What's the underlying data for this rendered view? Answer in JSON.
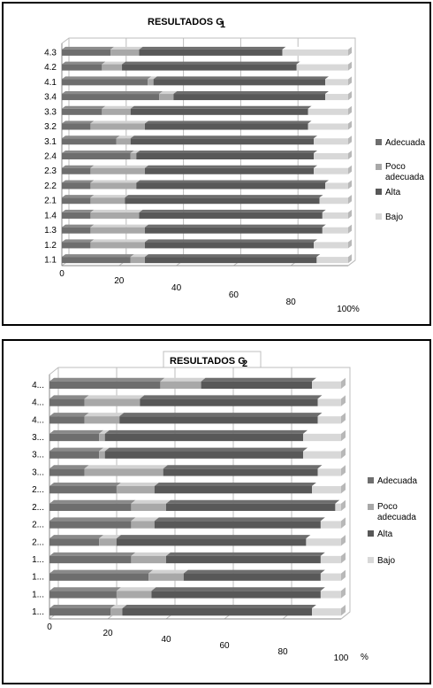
{
  "colors": {
    "Adecuada": "#6e6e6e",
    "Poco adecuada": "#a8a8a8",
    "Alta": "#585858",
    "Bajo": "#d8d8d8",
    "frame": "#bdbdbd"
  },
  "chart_data": [
    {
      "type": "bar",
      "orientation": "horizontal-stacked-percent",
      "title": "RESULTADOS G",
      "title_sub": "1",
      "categories": [
        "4.3",
        "4.2",
        "4.1",
        "3.4",
        "3.3",
        "3.2",
        "3.1",
        "2.4",
        "2.3",
        "2.2",
        "2.1",
        "1.4",
        "1.3",
        "1.2",
        "1.1"
      ],
      "xticks": [
        "0",
        "20",
        "40",
        "60",
        "80",
        "100%"
      ],
      "xlim": [
        0,
        100
      ],
      "series": [
        {
          "name": "Adecuada",
          "values": [
            17,
            14,
            30,
            34,
            14,
            10,
            19,
            24,
            10,
            10,
            10,
            10,
            10,
            10,
            24
          ]
        },
        {
          "name": "Poco adecuada",
          "values": [
            10,
            7,
            2,
            5,
            10,
            19,
            5,
            2,
            19,
            16,
            12,
            17,
            19,
            19,
            5
          ]
        },
        {
          "name": "Alta",
          "values": [
            50,
            61,
            60,
            53,
            62,
            57,
            64,
            62,
            59,
            66,
            68,
            64,
            62,
            59,
            60
          ]
        },
        {
          "name": "Bajo",
          "values": [
            23,
            18,
            8,
            8,
            14,
            14,
            12,
            12,
            12,
            8,
            10,
            9,
            9,
            12,
            11
          ]
        }
      ],
      "legend_position": "right"
    },
    {
      "type": "bar",
      "orientation": "horizontal-stacked-percent",
      "title": "RESULTADOS G",
      "title_sub": "2",
      "categories": [
        "4...",
        "4...",
        "4...",
        "3...",
        "3...",
        "3...",
        "2...",
        "2...",
        "2...",
        "2...",
        "1...",
        "1...",
        "1...",
        "1..."
      ],
      "xticks": [
        "0",
        "20",
        "40",
        "60",
        "80",
        "100"
      ],
      "xunit": "%",
      "xlim": [
        0,
        100
      ],
      "series": [
        {
          "name": "Adecuada",
          "values": [
            38,
            12,
            12,
            17,
            17,
            12,
            23,
            28,
            28,
            17,
            28,
            34,
            23,
            21
          ]
        },
        {
          "name": "Poco adecuada",
          "values": [
            14,
            19,
            12,
            2,
            2,
            27,
            13,
            12,
            8,
            6,
            12,
            12,
            12,
            4
          ]
        },
        {
          "name": "Alta",
          "values": [
            38,
            61,
            68,
            68,
            68,
            53,
            54,
            58,
            57,
            65,
            53,
            47,
            58,
            65
          ]
        },
        {
          "name": "Bajo",
          "values": [
            10,
            8,
            8,
            13,
            13,
            8,
            10,
            2,
            7,
            12,
            7,
            7,
            7,
            10
          ]
        }
      ],
      "legend_position": "right"
    }
  ]
}
